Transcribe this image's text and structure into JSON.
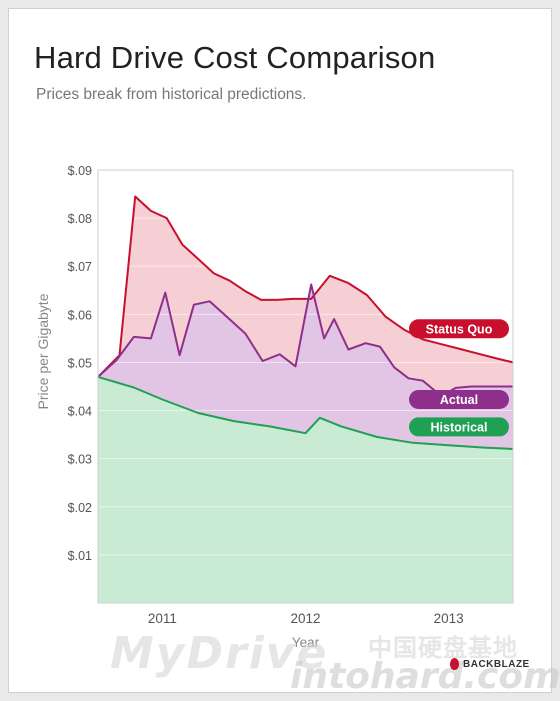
{
  "chart_data": {
    "type": "area",
    "title": "Hard Drive Cost Comparison",
    "subtitle": "Prices break from historical predictions.",
    "xlabel": "Year",
    "ylabel": "Price per Gigabyte",
    "xlim": [
      2010.55,
      2013.45
    ],
    "ylim": [
      0,
      0.09
    ],
    "y_ticks": [
      0.01,
      0.02,
      0.03,
      0.04,
      0.05,
      0.06,
      0.07,
      0.08,
      0.09
    ],
    "y_tick_labels": [
      "$.01",
      "$.02",
      "$.03",
      "$.04",
      "$.05",
      "$.06",
      "$.07",
      "$.08",
      "$.09"
    ],
    "x_ticks": [
      2011,
      2012,
      2013
    ],
    "x_tick_labels": [
      "2011",
      "2012",
      "2013"
    ],
    "grid": true,
    "series": [
      {
        "name": "Status Quo",
        "color": "#c8102e",
        "fill": "#f6cfd4",
        "x": [
          2010.55,
          2010.7,
          2010.81,
          2010.92,
          2011.03,
          2011.14,
          2011.25,
          2011.36,
          2011.47,
          2011.58,
          2011.69,
          2011.8,
          2011.91,
          2012.04,
          2012.17,
          2012.3,
          2012.43,
          2012.56,
          2012.69,
          2012.82,
          2012.95,
          2013.08,
          2013.21,
          2013.34,
          2013.45
        ],
        "values": [
          0.047,
          0.0515,
          0.0845,
          0.0815,
          0.08,
          0.0745,
          0.0715,
          0.0685,
          0.067,
          0.0648,
          0.063,
          0.063,
          0.0632,
          0.0632,
          0.068,
          0.0665,
          0.064,
          0.0595,
          0.0568,
          0.0548,
          0.0538,
          0.0528,
          0.0518,
          0.0508,
          0.05
        ]
      },
      {
        "name": "Actual",
        "color": "#8e2f8c",
        "fill": "#e2c5e4",
        "x": [
          2010.55,
          2010.68,
          2010.8,
          2010.92,
          2011.02,
          2011.12,
          2011.22,
          2011.33,
          2011.45,
          2011.58,
          2011.7,
          2011.82,
          2011.93,
          2012.04,
          2012.13,
          2012.2,
          2012.3,
          2012.42,
          2012.52,
          2012.62,
          2012.72,
          2012.82,
          2012.95,
          2013.05,
          2013.16,
          2013.28,
          2013.38,
          2013.45
        ],
        "values": [
          0.047,
          0.0505,
          0.0553,
          0.055,
          0.0645,
          0.0515,
          0.062,
          0.0627,
          0.0595,
          0.056,
          0.0503,
          0.0517,
          0.0492,
          0.0662,
          0.055,
          0.059,
          0.0527,
          0.054,
          0.0533,
          0.049,
          0.0467,
          0.0462,
          0.043,
          0.0447,
          0.045,
          0.045,
          0.045,
          0.045
        ]
      },
      {
        "name": "Historical",
        "color": "#1fa055",
        "fill": "#c9ebd3",
        "x": [
          2010.55,
          2010.8,
          2011.0,
          2011.25,
          2011.5,
          2011.75,
          2012.0,
          2012.1,
          2012.25,
          2012.5,
          2012.75,
          2013.0,
          2013.25,
          2013.45
        ],
        "values": [
          0.047,
          0.0448,
          0.0423,
          0.0395,
          0.0378,
          0.0367,
          0.0353,
          0.0385,
          0.0367,
          0.0345,
          0.0333,
          0.0328,
          0.0323,
          0.032
        ]
      }
    ],
    "legend_labels": [
      {
        "series": "Status Quo",
        "at_value": 0.057
      },
      {
        "series": "Actual",
        "at_value": 0.0423
      },
      {
        "series": "Historical",
        "at_value": 0.0366
      }
    ]
  },
  "branding": {
    "logo_text": "BACKBLAZE",
    "watermark_1": "MyDrive",
    "watermark_2": "中国硬盘基地",
    "watermark_3": "intohard.com"
  }
}
